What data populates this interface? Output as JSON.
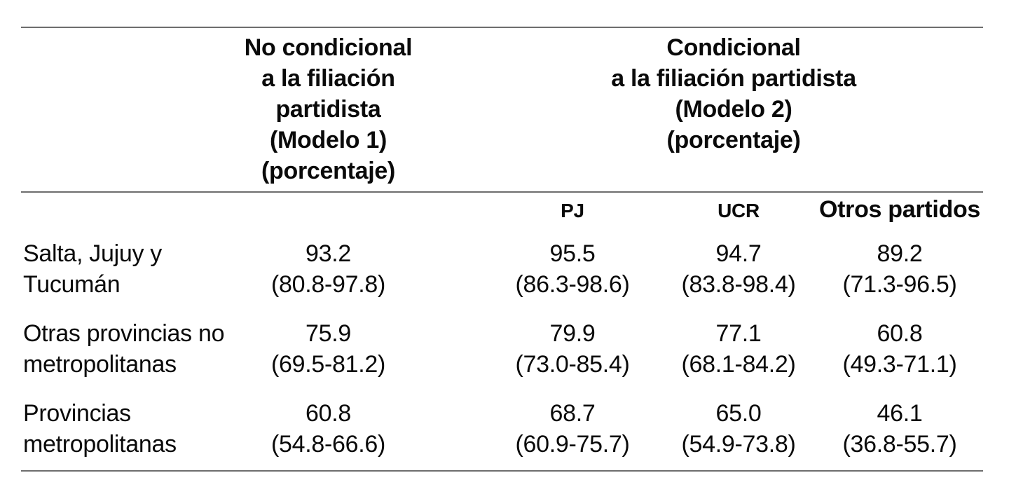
{
  "header": {
    "model1": {
      "lines": [
        "No condicional",
        "a la filiación",
        "partidista",
        "(Modelo 1)",
        "(porcentaje)"
      ]
    },
    "model2": {
      "lines": [
        "Condicional",
        "a la filiación partidista",
        "(Modelo 2)",
        "(porcentaje)"
      ]
    },
    "parties": [
      "PJ",
      "UCR",
      "Otros partidos"
    ]
  },
  "rows": [
    {
      "label_lines": [
        "Salta, Jujuy y",
        "Tucumán"
      ],
      "cells": [
        {
          "value": "93.2",
          "ci": "(80.8-97.8)"
        },
        {
          "value": "95.5",
          "ci": "(86.3-98.6)"
        },
        {
          "value": "94.7",
          "ci": "(83.8-98.4)"
        },
        {
          "value": "89.2",
          "ci": "(71.3-96.5)"
        }
      ]
    },
    {
      "label_lines": [
        "Otras provincias no",
        "metropolitanas"
      ],
      "cells": [
        {
          "value": "75.9",
          "ci": "(69.5-81.2)"
        },
        {
          "value": "79.9",
          "ci": "(73.0-85.4)"
        },
        {
          "value": "77.1",
          "ci": "(68.1-84.2)"
        },
        {
          "value": "60.8",
          "ci": "(49.3-71.1)"
        }
      ]
    },
    {
      "label_lines": [
        "Provincias",
        "metropolitanas"
      ],
      "cells": [
        {
          "value": "60.8",
          "ci": "(54.8-66.6)"
        },
        {
          "value": "68.7",
          "ci": "(60.9-75.7)"
        },
        {
          "value": "65.0",
          "ci": "(54.9-73.8)"
        },
        {
          "value": "46.1",
          "ci": "(36.8-55.7)"
        }
      ]
    }
  ],
  "colors": {
    "rule": "#6e6e6e",
    "text": "#0a0a0a",
    "background": "#ffffff"
  }
}
